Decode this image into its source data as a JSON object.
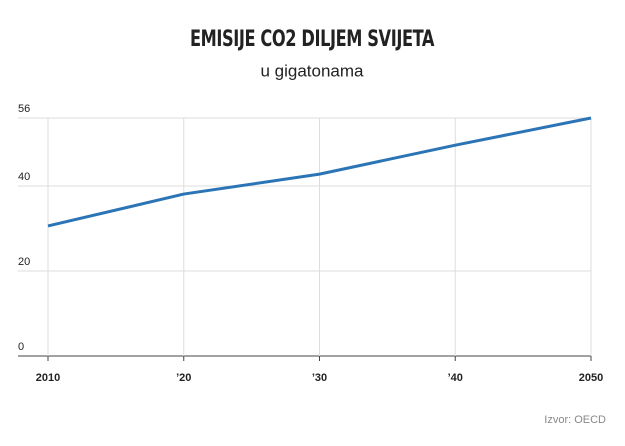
{
  "chart_data": {
    "type": "line",
    "title": "EMISIJE CO2 DILJEM SVIJETA",
    "subtitle": "u gigatonama",
    "source": "Izvor: OECD",
    "x": [
      2010,
      2020,
      2030,
      2040,
      2050
    ],
    "series": [
      {
        "color": "#2b74b5",
        "values": [
          30.6,
          38.1,
          42.8,
          49.6,
          56
        ]
      }
    ],
    "xlim": [
      2010,
      2050
    ],
    "xticks": [
      2010,
      {
        "value": 2020,
        "label": "’20"
      },
      {
        "value": 2030,
        "label": "’30"
      },
      {
        "value": 2040,
        "label": "’40"
      },
      2050
    ],
    "ylim": [
      0,
      56
    ],
    "yticks": [
      0,
      20,
      40,
      56
    ],
    "grid": true
  }
}
